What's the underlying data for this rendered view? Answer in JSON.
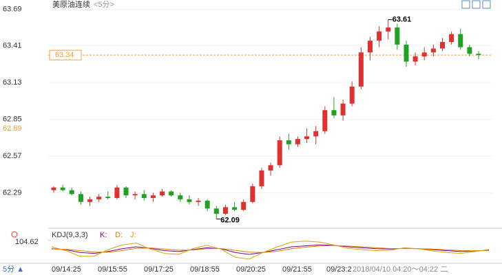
{
  "chart_data": {
    "type": "candlestick",
    "title": "美原油连续",
    "period": "<5分>",
    "ylim": [
      62.03,
      63.76
    ],
    "yticks": [
      63.69,
      63.41,
      63.13,
      62.85,
      62.57,
      62.29
    ],
    "reference_line": {
      "value": 63.34,
      "label": "63.34",
      "color": "#f0a030"
    },
    "open_label": "62.89",
    "high_label": "63.61",
    "low_label": "62.09",
    "up_color": "#e03030",
    "down_color": "#22a022",
    "candles": [
      [
        62.31,
        62.34,
        62.29,
        62.33
      ],
      [
        62.33,
        62.35,
        62.3,
        62.31
      ],
      [
        62.31,
        62.33,
        62.27,
        62.28
      ],
      [
        62.28,
        62.3,
        62.2,
        62.22
      ],
      [
        62.22,
        62.26,
        62.19,
        62.24
      ],
      [
        62.24,
        62.28,
        62.22,
        62.26
      ],
      [
        62.26,
        62.3,
        62.24,
        62.25
      ],
      [
        62.25,
        62.35,
        62.24,
        62.33
      ],
      [
        62.33,
        62.34,
        62.25,
        62.27
      ],
      [
        62.27,
        62.3,
        62.24,
        62.28
      ],
      [
        62.28,
        62.31,
        62.23,
        62.25
      ],
      [
        62.25,
        62.29,
        62.22,
        62.27
      ],
      [
        62.27,
        62.32,
        62.26,
        62.3
      ],
      [
        62.3,
        62.31,
        62.26,
        62.27
      ],
      [
        62.27,
        62.29,
        62.22,
        62.24
      ],
      [
        62.24,
        62.27,
        62.2,
        62.22
      ],
      [
        62.22,
        62.25,
        62.19,
        62.23
      ],
      [
        62.23,
        62.24,
        62.15,
        62.17
      ],
      [
        62.17,
        62.19,
        62.09,
        62.13
      ],
      [
        62.13,
        62.2,
        62.12,
        62.18
      ],
      [
        62.18,
        62.22,
        62.15,
        62.16
      ],
      [
        62.16,
        62.24,
        62.15,
        62.22
      ],
      [
        62.22,
        62.36,
        62.21,
        62.34
      ],
      [
        62.34,
        62.48,
        62.32,
        62.46
      ],
      [
        62.46,
        62.52,
        62.42,
        62.5
      ],
      [
        62.5,
        62.72,
        62.48,
        62.69
      ],
      [
        62.69,
        62.74,
        62.62,
        62.66
      ],
      [
        62.66,
        62.72,
        62.64,
        62.7
      ],
      [
        62.7,
        62.78,
        62.67,
        62.72
      ],
      [
        62.72,
        62.8,
        62.66,
        62.76
      ],
      [
        62.76,
        62.95,
        62.74,
        62.92
      ],
      [
        62.92,
        63.02,
        62.86,
        62.88
      ],
      [
        62.88,
        63.0,
        62.84,
        62.97
      ],
      [
        62.97,
        63.14,
        62.95,
        63.1
      ],
      [
        63.1,
        63.4,
        63.08,
        63.36
      ],
      [
        63.36,
        63.48,
        63.3,
        63.45
      ],
      [
        63.45,
        63.56,
        63.4,
        63.52
      ],
      [
        63.52,
        63.61,
        63.46,
        63.55
      ],
      [
        63.55,
        63.58,
        63.38,
        63.42
      ],
      [
        63.42,
        63.45,
        63.25,
        63.29
      ],
      [
        63.29,
        63.36,
        63.26,
        63.33
      ],
      [
        63.33,
        63.4,
        63.3,
        63.36
      ],
      [
        63.36,
        63.42,
        63.33,
        63.39
      ],
      [
        63.39,
        63.47,
        63.37,
        63.44
      ],
      [
        63.44,
        63.52,
        63.42,
        63.5
      ],
      [
        63.5,
        63.54,
        63.38,
        63.4
      ],
      [
        63.4,
        63.42,
        63.33,
        63.35
      ],
      [
        63.35,
        63.37,
        63.31,
        63.34
      ]
    ],
    "x_labels": [
      "09/14:25",
      "09/15:55",
      "09/17:25",
      "09/18:55",
      "09/20:25",
      "09/21:55",
      "09/23:2"
    ],
    "cursor_time": "2018/04/10 04:20～04:22 二",
    "period_button": "5分 ▲",
    "indicator": {
      "title": "KDJ(9,3,3)",
      "ylim": [
        -10,
        110
      ],
      "yticks": [
        104.62
      ],
      "series": [
        {
          "name": "K:",
          "color": "#800080",
          "values": [
            60,
            55,
            40,
            35,
            45,
            60,
            70,
            62,
            50,
            45,
            55,
            65,
            60,
            40,
            30,
            40,
            55,
            70,
            75,
            80,
            78,
            70,
            65,
            60,
            58,
            62,
            60,
            55,
            50,
            45,
            48,
            52
          ]
        },
        {
          "name": "D:",
          "color": "#e08000",
          "values": [
            58,
            57,
            50,
            42,
            42,
            50,
            62,
            64,
            58,
            52,
            53,
            60,
            61,
            52,
            42,
            40,
            47,
            60,
            68,
            74,
            77,
            74,
            70,
            65,
            61,
            61,
            60,
            58,
            54,
            50,
            49,
            50
          ]
        },
        {
          "name": "J:",
          "color": "#e0a000",
          "values": [
            70,
            50,
            20,
            20,
            55,
            80,
            90,
            58,
            35,
            30,
            60,
            78,
            58,
            15,
            5,
            40,
            70,
            95,
            100,
            95,
            80,
            62,
            55,
            50,
            52,
            65,
            60,
            48,
            40,
            35,
            45,
            56
          ]
        }
      ]
    }
  }
}
